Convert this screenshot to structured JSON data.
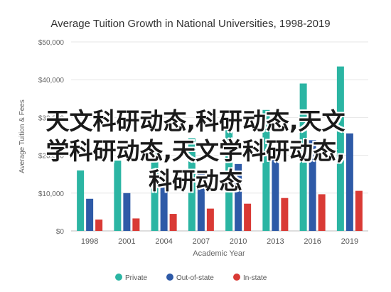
{
  "overlay_text": {
    "line1": "天文科研动态,科研动态,天文",
    "line2": "学科研动态,天文学科研动态,",
    "line3": "科研动态"
  },
  "chart_data": {
    "type": "bar",
    "title": "Average Tuition Growth in National Universities, 1998-2019",
    "xlabel": "Academic Year",
    "ylabel": "Average Tuition & Fees",
    "categories": [
      "1998",
      "2001",
      "2004",
      "2007",
      "2010",
      "2013",
      "2016",
      "2019"
    ],
    "yticks": [
      "$0",
      "$10,000",
      "$20,000",
      "$30,000",
      "$40,000",
      "$50,000"
    ],
    "ylim": [
      0,
      50000
    ],
    "grid": true,
    "legend_position": "bottom",
    "series": [
      {
        "name": "Private",
        "color": "#2bb5a3",
        "values": [
          16000,
          18600,
          22000,
          24500,
          28300,
          32000,
          39000,
          43500
        ]
      },
      {
        "name": "Out-of-state",
        "color": "#2e5aa7",
        "values": [
          8500,
          10000,
          12700,
          15000,
          17700,
          21000,
          24000,
          25800
        ]
      },
      {
        "name": "In-state",
        "color": "#d93a35",
        "values": [
          3000,
          3300,
          4500,
          5900,
          7200,
          8700,
          9700,
          10600
        ]
      }
    ]
  }
}
